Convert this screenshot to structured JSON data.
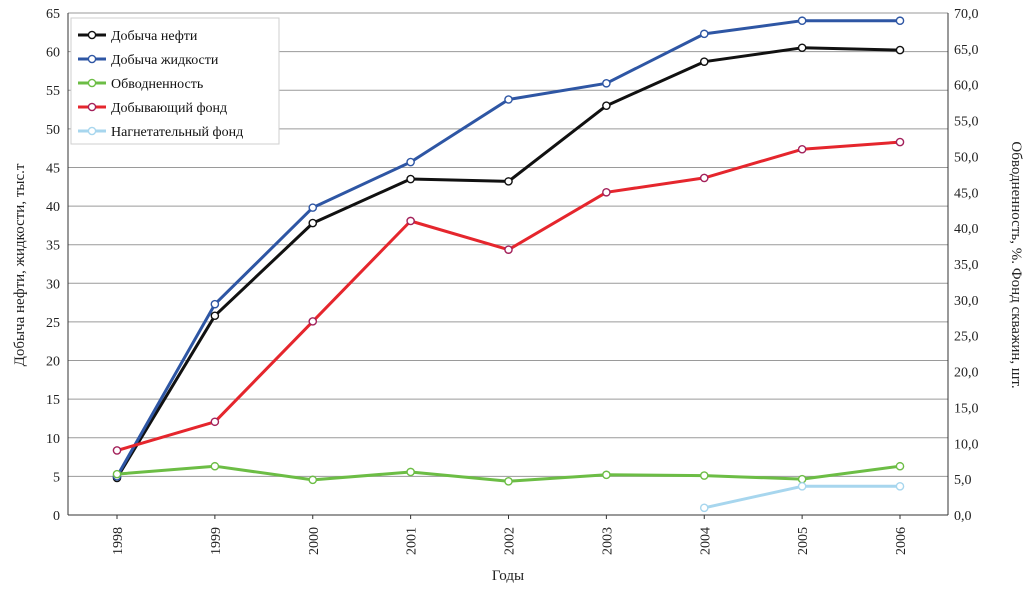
{
  "chart_data": {
    "type": "line",
    "categories": [
      "1998",
      "1999",
      "2000",
      "2001",
      "2002",
      "2003",
      "2004",
      "2005",
      "2006"
    ],
    "xlabel": "Годы",
    "ylabel_left": "Добыча нефти, жидкости, тыс.т",
    "ylabel_right": "Обводненность, %. Фонд скважин, шт.",
    "ylim_left": [
      0,
      65
    ],
    "ylim_right": [
      0,
      70
    ],
    "yticks_left": [
      "0",
      "5",
      "10",
      "15",
      "20",
      "25",
      "30",
      "35",
      "40",
      "45",
      "50",
      "55",
      "60",
      "65"
    ],
    "yticks_right": [
      "0,0",
      "5,0",
      "10,0",
      "15,0",
      "20,0",
      "25,0",
      "30,0",
      "35,0",
      "40,0",
      "45,0",
      "50,0",
      "55,0",
      "60,0",
      "65,0",
      "70,0"
    ],
    "grid": true,
    "legend_position": "top-left",
    "series": [
      {
        "name": "Добыча нефти",
        "axis": "left",
        "color": "#111111",
        "values": [
          4.8,
          25.8,
          37.8,
          43.5,
          43.2,
          53.0,
          58.7,
          60.5,
          60.2
        ]
      },
      {
        "name": "Добыча жидкости",
        "axis": "left",
        "color": "#2e56a4",
        "values": [
          5.0,
          27.3,
          39.8,
          45.7,
          53.8,
          55.9,
          62.3,
          64.0,
          64.0
        ]
      },
      {
        "name": "Обводненность",
        "axis": "right",
        "color": "#6cbd45",
        "values": [
          5.7,
          6.8,
          4.9,
          6.0,
          4.7,
          5.6,
          5.5,
          5.0,
          6.8
        ]
      },
      {
        "name": "Добывающий фонд",
        "axis": "right",
        "color": "#e5262d",
        "values": [
          9,
          13,
          27,
          41,
          37,
          45,
          47,
          51,
          52
        ]
      },
      {
        "name": "Нагнетательный фонд",
        "axis": "right",
        "color": "#a7d6ee",
        "values": [
          null,
          null,
          null,
          null,
          null,
          null,
          1,
          4,
          4
        ]
      }
    ]
  }
}
